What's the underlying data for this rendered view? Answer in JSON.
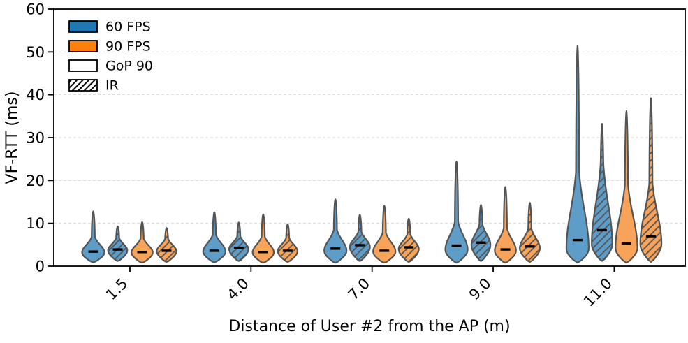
{
  "chart_data": {
    "type": "violin",
    "title": "",
    "xlabel": "Distance of User #2 from the AP (m)",
    "ylabel": "VF-RTT (ms)",
    "ylim": [
      0,
      60
    ],
    "yticks": [
      0,
      10,
      20,
      30,
      40,
      50,
      60
    ],
    "grid": "horizontal-dashed",
    "categories": [
      "1.5",
      "4.0",
      "7.0",
      "9.0",
      "11.0"
    ],
    "legend_position": "upper-left",
    "legend": [
      {
        "label": "60 FPS",
        "swatch": "#1f77b4",
        "hatch": false
      },
      {
        "label": "90 FPS",
        "swatch": "#ff7f0e",
        "hatch": false
      },
      {
        "label": "GoP 90",
        "swatch": "#ffffff",
        "hatch": false
      },
      {
        "label": "IR",
        "swatch": "#ffffff",
        "hatch": true
      }
    ],
    "variants": [
      {
        "name": "60 FPS GoP 90",
        "color": "blue",
        "hatch": false
      },
      {
        "name": "60 FPS IR",
        "color": "blue",
        "hatch": true
      },
      {
        "name": "90 FPS GoP 90",
        "color": "orange",
        "hatch": false
      },
      {
        "name": "90 FPS IR",
        "color": "orange",
        "hatch": true
      }
    ],
    "colors": {
      "blue_fill": "#5e9dc8",
      "orange_fill": "#f7a45a",
      "blue_strong": "#1f77b4",
      "orange_strong": "#ff7f0e",
      "edge": "#545454",
      "median": "#000000",
      "grid": "#d9d9d9"
    },
    "violins": [
      [
        {
          "min": 0.9,
          "max": 12.8,
          "median": 3.4,
          "peak": 3.2,
          "body_top": 6.3,
          "width": 1.0
        },
        {
          "min": 1.2,
          "max": 9.3,
          "median": 3.9,
          "peak": 3.7,
          "body_top": 6.2,
          "width": 0.86
        },
        {
          "min": 0.8,
          "max": 10.3,
          "median": 3.3,
          "peak": 3.2,
          "body_top": 6.0,
          "width": 0.95
        },
        {
          "min": 1.0,
          "max": 8.9,
          "median": 3.6,
          "peak": 3.5,
          "body_top": 6.0,
          "width": 0.88
        }
      ],
      [
        {
          "min": 0.9,
          "max": 12.6,
          "median": 3.6,
          "peak": 3.4,
          "body_top": 6.8,
          "width": 1.0
        },
        {
          "min": 1.2,
          "max": 10.2,
          "median": 4.3,
          "peak": 4.0,
          "body_top": 6.6,
          "width": 0.86
        },
        {
          "min": 0.8,
          "max": 12.1,
          "median": 3.3,
          "peak": 3.2,
          "body_top": 6.4,
          "width": 0.95
        },
        {
          "min": 1.0,
          "max": 9.8,
          "median": 3.6,
          "peak": 3.5,
          "body_top": 6.2,
          "width": 0.88
        }
      ],
      [
        {
          "min": 0.8,
          "max": 15.6,
          "median": 4.1,
          "peak": 3.6,
          "body_top": 7.8,
          "width": 1.0
        },
        {
          "min": 1.2,
          "max": 12.0,
          "median": 4.9,
          "peak": 4.5,
          "body_top": 7.6,
          "width": 0.9
        },
        {
          "min": 0.8,
          "max": 14.1,
          "median": 3.6,
          "peak": 3.4,
          "body_top": 7.2,
          "width": 1.0
        },
        {
          "min": 1.0,
          "max": 11.1,
          "median": 4.4,
          "peak": 4.0,
          "body_top": 7.0,
          "width": 0.9
        }
      ],
      [
        {
          "min": 0.8,
          "max": 24.4,
          "median": 4.8,
          "peak": 3.8,
          "body_top": 9.5,
          "width": 1.0
        },
        {
          "min": 1.2,
          "max": 14.3,
          "median": 5.5,
          "peak": 5.0,
          "body_top": 9.2,
          "width": 0.85
        },
        {
          "min": 0.8,
          "max": 18.5,
          "median": 3.9,
          "peak": 3.6,
          "body_top": 8.2,
          "width": 0.95
        },
        {
          "min": 1.0,
          "max": 14.8,
          "median": 4.6,
          "peak": 4.2,
          "body_top": 8.2,
          "width": 0.9
        }
      ],
      [
        {
          "min": 0.8,
          "max": 51.5,
          "median": 6.1,
          "peak": 4.0,
          "body_top": 19.5,
          "width": 1.0
        },
        {
          "min": 1.2,
          "max": 33.2,
          "median": 8.4,
          "peak": 5.2,
          "body_top": 21.0,
          "width": 0.92
        },
        {
          "min": 0.8,
          "max": 36.2,
          "median": 5.3,
          "peak": 4.2,
          "body_top": 17.0,
          "width": 0.98
        },
        {
          "min": 1.0,
          "max": 39.2,
          "median": 7.0,
          "peak": 5.2,
          "body_top": 17.5,
          "width": 0.95
        }
      ]
    ]
  }
}
